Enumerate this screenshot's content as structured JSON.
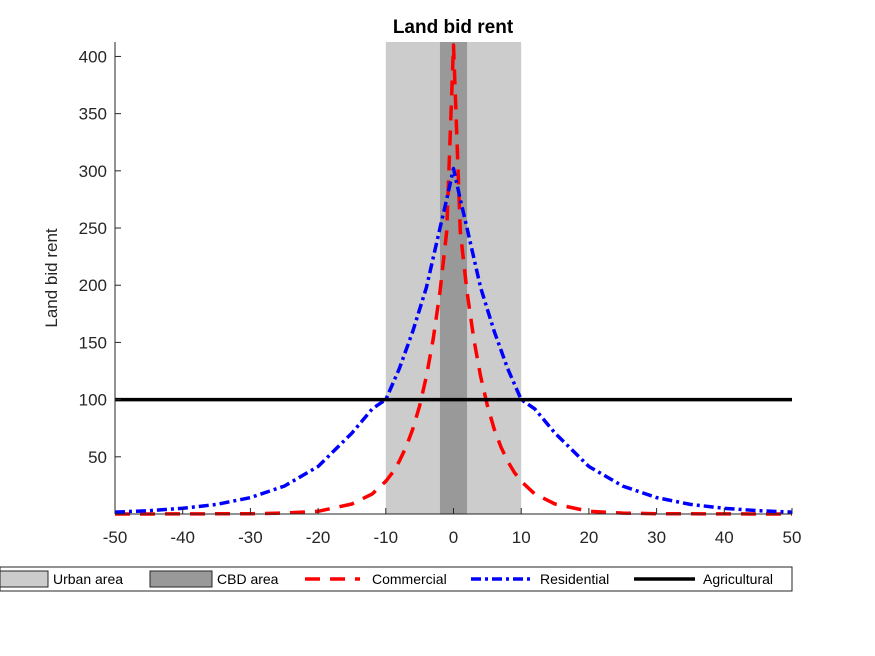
{
  "chart_data": {
    "type": "line",
    "title": "Land bid rent",
    "xlabel": "",
    "ylabel": "Land bid rent",
    "xlim": [
      -50,
      50
    ],
    "ylim": [
      0,
      410
    ],
    "xticks": [
      -50,
      -40,
      -30,
      -20,
      -10,
      0,
      10,
      20,
      30,
      40,
      50
    ],
    "yticks": [
      50,
      100,
      150,
      200,
      250,
      300,
      350,
      400
    ],
    "grid": false,
    "legend_position": "bottom",
    "regions": [
      {
        "name": "Urban area",
        "x_range": [
          -10,
          10
        ],
        "color": "#cccccc"
      },
      {
        "name": "CBD area",
        "x_range": [
          -2,
          2
        ],
        "color": "#999999"
      }
    ],
    "series": [
      {
        "name": "Commercial",
        "style": "dashed",
        "color": "#ff0000",
        "x": [
          -50,
          -40,
          -30,
          -25,
          -20,
          -15,
          -12,
          -10,
          -9,
          -8,
          -7,
          -6,
          -5,
          -4,
          -3,
          -2,
          -1,
          0,
          1,
          2,
          3,
          4,
          5,
          6,
          7,
          8,
          9,
          10,
          12,
          15,
          20,
          25,
          30,
          40,
          50
        ],
        "y": [
          0.0,
          0.1,
          0.3,
          0.8,
          2.4,
          8.7,
          17.6,
          28.6,
          36.3,
          46.2,
          58.7,
          74.6,
          94.8,
          120.4,
          153.0,
          194.4,
          247.0,
          410.0,
          247.0,
          194.4,
          153.0,
          120.4,
          94.8,
          74.6,
          58.7,
          46.2,
          36.3,
          28.6,
          17.6,
          8.7,
          2.4,
          0.8,
          0.3,
          0.1,
          0.0
        ]
      },
      {
        "name": "Residential",
        "style": "dashdot",
        "color": "#0000ff",
        "x": [
          -50,
          -45,
          -40,
          -35,
          -30,
          -25,
          -20,
          -15,
          -12,
          -10,
          -8,
          -6,
          -4,
          -2,
          -1,
          0,
          1,
          2,
          4,
          6,
          8,
          10,
          12,
          15,
          20,
          25,
          30,
          35,
          40,
          45,
          50
        ],
        "y": [
          1.7,
          2.9,
          5.0,
          8.4,
          14.3,
          24.4,
          41.5,
          70.7,
          92.0,
          100.0,
          127.0,
          160.0,
          198.0,
          250.0,
          275.0,
          302.0,
          275.0,
          250.0,
          198.0,
          160.0,
          127.0,
          100.0,
          92.0,
          70.7,
          41.5,
          24.4,
          14.3,
          8.4,
          5.0,
          2.9,
          1.7
        ]
      },
      {
        "name": "Agricultural",
        "style": "solid",
        "color": "#000000",
        "x": [
          -50,
          50
        ],
        "y": [
          100,
          100
        ]
      }
    ],
    "legend": [
      "Urban area",
      "CBD area",
      "Commercial",
      "Residential",
      "Agricultural"
    ]
  }
}
